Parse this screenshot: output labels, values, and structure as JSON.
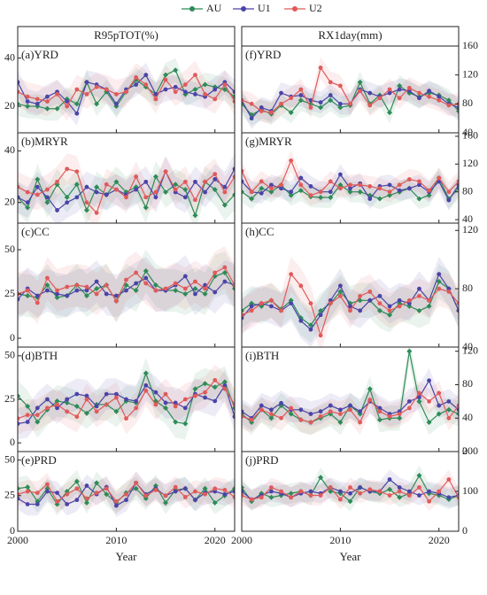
{
  "chart_data": {
    "type": "line",
    "series": [
      {
        "name": "AU",
        "color": "#2e8b57"
      },
      {
        "name": "U1",
        "color": "#4a44a8"
      },
      {
        "name": "U2",
        "color": "#e05a5a"
      }
    ],
    "x": [
      2000,
      2001,
      2002,
      2003,
      2004,
      2005,
      2006,
      2007,
      2008,
      2009,
      2010,
      2011,
      2012,
      2013,
      2014,
      2015,
      2016,
      2017,
      2018,
      2019,
      2020,
      2021,
      2022
    ],
    "xlim": [
      2000,
      2022
    ],
    "xticks": [
      2000,
      2010,
      2020
    ],
    "xlabel": "Year",
    "columns": [
      {
        "title": "R95pTOT(%)",
        "panels": [
          {
            "label": "(a)YRD",
            "ylim": [
              9,
              45
            ],
            "yticks": [
              20,
              40
            ],
            "errors": [
              5,
              5,
              6
            ],
            "values": [
              [
                21,
                20,
                20,
                19,
                19,
                23,
                21,
                30,
                21,
                26,
                20,
                26,
                31,
                28,
                25,
                33,
                35,
                25,
                27,
                29,
                28,
                27,
                24
              ],
              [
                30,
                22,
                21,
                24,
                26,
                22,
                17,
                30,
                29,
                27,
                21,
                27,
                29,
                33,
                25,
                27,
                28,
                26,
                25,
                24,
                27,
                30,
                26
              ],
              [
                26,
                24,
                23,
                22,
                25,
                20,
                27,
                25,
                28,
                27,
                25,
                26,
                32,
                29,
                23,
                31,
                26,
                29,
                33,
                25,
                23,
                29,
                22
              ]
            ]
          },
          {
            "label": "(b)MRYR",
            "ylim": [
              12,
              47
            ],
            "yticks": [
              20,
              40
            ],
            "errors": [
              6,
              6,
              6
            ],
            "values": [
              [
                22,
                18,
                29,
                20,
                27,
                22,
                27,
                17,
                26,
                23,
                28,
                24,
                26,
                18,
                30,
                24,
                27,
                25,
                15,
                28,
                25,
                19,
                23
              ],
              [
                22,
                20,
                26,
                22,
                17,
                20,
                22,
                26,
                24,
                23,
                25,
                23,
                25,
                28,
                22,
                32,
                24,
                22,
                28,
                24,
                29,
                26,
                33
              ],
              [
                26,
                24,
                23,
                25,
                28,
                33,
                32,
                20,
                16,
                27,
                25,
                22,
                30,
                22,
                24,
                32,
                25,
                28,
                21,
                28,
                31,
                24,
                30
              ]
            ]
          },
          {
            "label": "(c)CC",
            "ylim": [
              -5,
              65
            ],
            "yticks": [
              0,
              25,
              50
            ],
            "errors": [
              12,
              12,
              12
            ],
            "values": [
              [
                25,
                24,
                23,
                30,
                23,
                24,
                30,
                24,
                28,
                30,
                21,
                30,
                27,
                38,
                30,
                27,
                27,
                25,
                28,
                25,
                35,
                37,
                28
              ],
              [
                22,
                28,
                24,
                27,
                25,
                24,
                27,
                27,
                32,
                25,
                24,
                27,
                31,
                34,
                27,
                27,
                30,
                35,
                25,
                30,
                26,
                32,
                30
              ],
              [
                25,
                27,
                20,
                34,
                27,
                29,
                30,
                29,
                25,
                30,
                21,
                33,
                37,
                31,
                27,
                28,
                31,
                28,
                32,
                28,
                37,
                40,
                30
              ]
            ]
          },
          {
            "label": "(d)BTH",
            "ylim": [
              -5,
              55
            ],
            "yticks": [
              0,
              25,
              50
            ],
            "errors": [
              9,
              9,
              9
            ],
            "values": [
              [
                27,
                21,
                12,
                19,
                24,
                23,
                21,
                17,
                22,
                22,
                18,
                24,
                23,
                40,
                24,
                20,
                12,
                11,
                31,
                34,
                32,
                35,
                20
              ],
              [
                11,
                12,
                20,
                25,
                20,
                25,
                28,
                27,
                21,
                28,
                28,
                25,
                24,
                33,
                29,
                23,
                23,
                20,
                28,
                26,
                24,
                33,
                15
              ],
              [
                14,
                16,
                16,
                20,
                22,
                18,
                15,
                25,
                18,
                22,
                26,
                14,
                20,
                30,
                22,
                28,
                21,
                25,
                27,
                29,
                36,
                31,
                22
              ]
            ]
          },
          {
            "label": "(e)PRD",
            "ylim": [
              0,
              56
            ],
            "yticks": [
              0,
              25,
              50
            ],
            "errors": [
              8,
              8,
              8
            ],
            "values": [
              [
                30,
                31,
                21,
                30,
                19,
                28,
                35,
                20,
                34,
                26,
                20,
                27,
                30,
                23,
                32,
                20,
                29,
                30,
                22,
                30,
                20,
                25,
                30
              ],
              [
                23,
                19,
                19,
                28,
                27,
                19,
                22,
                32,
                26,
                31,
                18,
                22,
                34,
                26,
                30,
                25,
                28,
                30,
                22,
                27,
                28,
                26,
                28
              ],
              [
                26,
                28,
                27,
                33,
                21,
                26,
                30,
                23,
                27,
                30,
                21,
                26,
                34,
                25,
                29,
                25,
                31,
                24,
                28,
                26,
                30,
                29,
                24
              ]
            ]
          }
        ]
      },
      {
        "title": "RX1day(mm)",
        "panels": [
          {
            "label": "(f)YRD",
            "ylim": [
              40,
              160
            ],
            "yticks": [
              40,
              80,
              120,
              160
            ],
            "errors": [
              15,
              15,
              15
            ],
            "values": [
              [
                80,
                65,
                72,
                66,
                78,
                68,
                85,
                80,
                75,
                85,
                75,
                78,
                110,
                80,
                92,
                68,
                105,
                95,
                90,
                95,
                92,
                85,
                70
              ],
              [
                85,
                60,
                75,
                70,
                95,
                90,
                92,
                85,
                82,
                92,
                80,
                80,
                100,
                95,
                90,
                95,
                100,
                98,
                88,
                98,
                90,
                80,
                75
              ],
              [
                85,
                80,
                70,
                68,
                80,
                88,
                100,
                75,
                130,
                110,
                105,
                80,
                98,
                78,
                88,
                100,
                88,
                102,
                95,
                90,
                85,
                78,
                80
              ]
            ]
          },
          {
            "label": "(g)MRYR",
            "ylim": [
              35,
              165
            ],
            "yticks": [
              40,
              80,
              120,
              160
            ],
            "errors": [
              15,
              15,
              15
            ],
            "values": [
              [
                80,
                70,
                85,
                80,
                90,
                75,
                82,
                73,
                72,
                72,
                90,
                80,
                80,
                75,
                70,
                75,
                80,
                85,
                70,
                75,
                100,
                70,
                85
              ],
              [
                95,
                80,
                78,
                90,
                85,
                80,
                100,
                88,
                80,
                80,
                105,
                85,
                92,
                70,
                88,
                90,
                82,
                85,
                90,
                80,
                95,
                68,
                90
              ],
              [
                110,
                80,
                95,
                85,
                90,
                125,
                90,
                75,
                80,
                95,
                85,
                90,
                90,
                88,
                85,
                80,
                90,
                98,
                95,
                82,
                100,
                80,
                95
              ]
            ]
          },
          {
            "label": "(h)CC",
            "ylim": [
              40,
              125
            ],
            "yticks": [
              40,
              80,
              120
            ],
            "errors": [
              12,
              12,
              12
            ],
            "values": [
              [
                65,
                70,
                68,
                72,
                66,
                72,
                60,
                55,
                65,
                70,
                78,
                70,
                72,
                72,
                65,
                62,
                70,
                68,
                65,
                68,
                85,
                80,
                65
              ],
              [
                60,
                68,
                70,
                68,
                65,
                70,
                58,
                52,
                62,
                72,
                82,
                68,
                65,
                72,
                75,
                68,
                72,
                70,
                80,
                72,
                90,
                80,
                65
              ],
              [
                62,
                65,
                70,
                72,
                65,
                90,
                82,
                70,
                48,
                70,
                75,
                65,
                75,
                78,
                70,
                65,
                68,
                72,
                75,
                72,
                80,
                78,
                70
              ]
            ]
          },
          {
            "label": "(i)BTH",
            "ylim": [
              0,
              125
            ],
            "yticks": [
              0,
              40,
              80,
              120
            ],
            "errors": [
              15,
              15,
              15
            ],
            "values": [
              [
                45,
                35,
                50,
                40,
                55,
                45,
                38,
                35,
                40,
                45,
                35,
                55,
                45,
                75,
                38,
                40,
                40,
                120,
                60,
                35,
                45,
                50,
                45
              ],
              [
                48,
                40,
                55,
                50,
                58,
                50,
                50,
                45,
                48,
                55,
                50,
                55,
                48,
                60,
                52,
                45,
                48,
                60,
                65,
                85,
                55,
                60,
                50
              ],
              [
                42,
                38,
                50,
                45,
                40,
                52,
                38,
                35,
                42,
                48,
                45,
                50,
                35,
                62,
                48,
                42,
                45,
                52,
                70,
                60,
                70,
                40,
                55
              ]
            ]
          },
          {
            "label": "(j)PRD",
            "ylim": [
              0,
              200
            ],
            "yticks": [
              0,
              100,
              200
            ],
            "errors": [
              25,
              25,
              25
            ],
            "values": [
              [
                110,
                75,
                95,
                85,
                90,
                95,
                100,
                90,
                135,
                100,
                95,
                75,
                110,
                100,
                95,
                105,
                85,
                95,
                140,
                95,
                90,
                80,
                90
              ],
              [
                100,
                80,
                90,
                100,
                95,
                85,
                95,
                100,
                95,
                110,
                100,
                95,
                110,
                100,
                100,
                130,
                110,
                100,
                90,
                100,
                95,
                85,
                90
              ],
              [
                90,
                80,
                85,
                110,
                100,
                85,
                100,
                90,
                90,
                110,
                80,
                110,
                95,
                105,
                100,
                90,
                100,
                90,
                110,
                75,
                100,
                130,
                85
              ]
            ]
          }
        ]
      }
    ]
  }
}
